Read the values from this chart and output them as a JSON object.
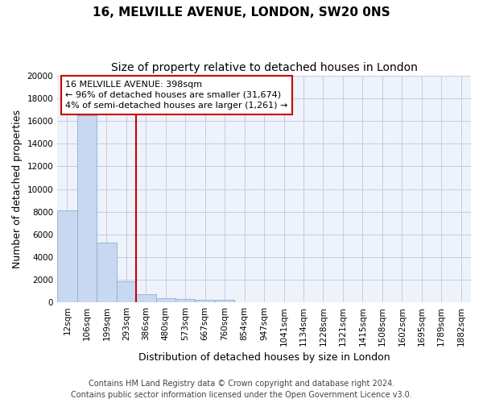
{
  "title_line1": "16, MELVILLE AVENUE, LONDON, SW20 0NS",
  "title_line2": "Size of property relative to detached houses in London",
  "xlabel": "Distribution of detached houses by size in London",
  "ylabel": "Number of detached properties",
  "categories": [
    "12sqm",
    "106sqm",
    "199sqm",
    "293sqm",
    "386sqm",
    "480sqm",
    "573sqm",
    "667sqm",
    "760sqm",
    "854sqm",
    "947sqm",
    "1041sqm",
    "1134sqm",
    "1228sqm",
    "1321sqm",
    "1415sqm",
    "1508sqm",
    "1602sqm",
    "1695sqm",
    "1789sqm",
    "1882sqm"
  ],
  "values": [
    8100,
    16500,
    5300,
    1850,
    700,
    380,
    280,
    220,
    200,
    0,
    0,
    0,
    0,
    0,
    0,
    0,
    0,
    0,
    0,
    0,
    0
  ],
  "bar_color": "#c8d8f0",
  "bar_edge_color": "#8ab0d8",
  "vline_color": "#cc0000",
  "vline_x_index": 4,
  "annotation_text": "16 MELVILLE AVENUE: 398sqm\n← 96% of detached houses are smaller (31,674)\n4% of semi-detached houses are larger (1,261) →",
  "annotation_box_facecolor": "#ffffff",
  "annotation_box_edgecolor": "#cc0000",
  "ylim": [
    0,
    20000
  ],
  "yticks": [
    0,
    2000,
    4000,
    6000,
    8000,
    10000,
    12000,
    14000,
    16000,
    18000,
    20000
  ],
  "footer_text": "Contains HM Land Registry data © Crown copyright and database right 2024.\nContains public sector information licensed under the Open Government Licence v3.0.",
  "background_color": "#eef2fb",
  "grid_color": "#c5cce0",
  "title_fontsize": 11,
  "subtitle_fontsize": 10,
  "axis_label_fontsize": 9,
  "tick_fontsize": 7.5,
  "footer_fontsize": 7,
  "annotation_fontsize": 8
}
